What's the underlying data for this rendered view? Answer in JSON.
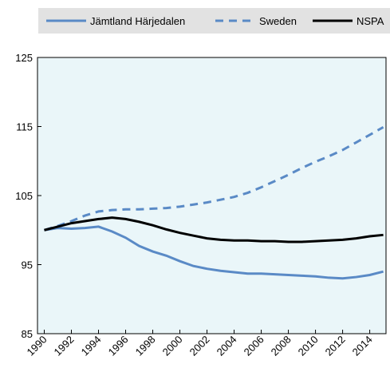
{
  "chart_data": {
    "type": "line",
    "x": [
      1990,
      1991,
      1992,
      1993,
      1994,
      1995,
      1996,
      1997,
      1998,
      1999,
      2000,
      2001,
      2002,
      2003,
      2004,
      2005,
      2006,
      2007,
      2008,
      2009,
      2010,
      2011,
      2012,
      2013,
      2014,
      2015
    ],
    "series": [
      {
        "name": "Jämtland Härjedalen",
        "color": "#5a8ac6",
        "dash": "solid",
        "values": [
          100,
          100.3,
          100.2,
          100.3,
          100.5,
          99.8,
          98.9,
          97.7,
          96.9,
          96.3,
          95.5,
          94.8,
          94.4,
          94.1,
          93.9,
          93.7,
          93.7,
          93.6,
          93.5,
          93.4,
          93.3,
          93.1,
          93.0,
          93.2,
          93.5,
          94.0
        ]
      },
      {
        "name": "Sweden",
        "color": "#5a8ac6",
        "dash": "dashed",
        "values": [
          100,
          100.6,
          101.3,
          102.1,
          102.7,
          102.9,
          103.0,
          103.0,
          103.1,
          103.2,
          103.4,
          103.7,
          104.0,
          104.4,
          104.8,
          105.4,
          106.2,
          107.1,
          108.0,
          109.0,
          109.9,
          110.7,
          111.6,
          112.7,
          113.8,
          114.9
        ]
      },
      {
        "name": "NSPA",
        "color": "#000000",
        "dash": "solid",
        "values": [
          100,
          100.5,
          101.0,
          101.3,
          101.6,
          101.8,
          101.6,
          101.2,
          100.7,
          100.1,
          99.6,
          99.2,
          98.8,
          98.6,
          98.5,
          98.5,
          98.4,
          98.4,
          98.3,
          98.3,
          98.4,
          98.5,
          98.6,
          98.8,
          99.1,
          99.3
        ]
      }
    ],
    "xlim": [
      1989.5,
      2015.2
    ],
    "xticks": [
      1990,
      1992,
      1994,
      1996,
      1998,
      2000,
      2002,
      2004,
      2006,
      2008,
      2010,
      2012,
      2014
    ],
    "ylim": [
      85,
      125
    ],
    "yticks": [
      85,
      95,
      105,
      115,
      125
    ],
    "grid": false,
    "legend": "top"
  }
}
